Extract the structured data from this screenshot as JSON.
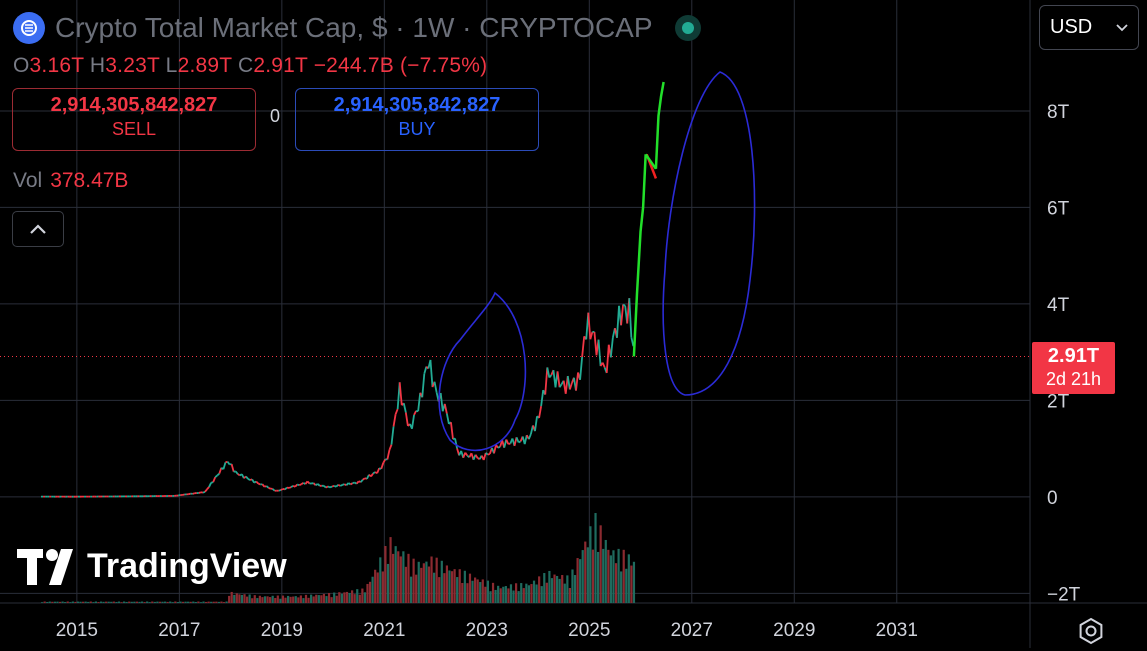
{
  "header": {
    "title": "Crypto Total Market Cap, $ · 1W · CRYPTOCAP",
    "symbol_icon": "crypto-cap-icon"
  },
  "ohlc": {
    "o_label": "O",
    "o_value": "3.16T",
    "h_label": "H",
    "h_value": "3.23T",
    "l_label": "L",
    "l_value": "2.89T",
    "c_label": "C",
    "c_value": "2.91T",
    "change": "−244.7B (−7.75%)"
  },
  "trade": {
    "sell_price": "2,914,305,842,827",
    "sell_label": "SELL",
    "buy_price": "2,914,305,842,827",
    "buy_label": "BUY",
    "spread": "0"
  },
  "volume": {
    "label": "Vol",
    "value": "378.47B"
  },
  "currency": {
    "selected": "USD"
  },
  "price_tag": {
    "price": "2.91T",
    "countdown": "2d 21h"
  },
  "watermark": "TradingView",
  "colors": {
    "up": "#22ab94",
    "down": "#f23645",
    "annotation_circle": "#2b2bd6",
    "annotation_up": "#22e02a",
    "annotation_down": "#f22020"
  },
  "chart_data": {
    "type": "line",
    "series": [
      {
        "x": [
          2014.3,
          2015.0,
          2016.0,
          2016.9,
          2017.5,
          2017.95,
          2018.1,
          2018.5,
          2018.9,
          2019.5,
          2019.9,
          2020.5,
          2020.9,
          2021.1,
          2021.3,
          2021.5,
          2021.7,
          2021.85,
          2022.0,
          2022.2,
          2022.45,
          2022.9,
          2023.3,
          2023.8,
          2024.0,
          2024.2,
          2024.5,
          2024.8,
          2024.95,
          2025.1,
          2025.3,
          2025.5,
          2025.65,
          2025.8,
          2025.87
        ],
        "y": [
          0.005,
          0.004,
          0.01,
          0.02,
          0.1,
          0.75,
          0.5,
          0.3,
          0.12,
          0.3,
          0.2,
          0.3,
          0.55,
          0.9,
          2.2,
          1.4,
          2.0,
          2.85,
          2.2,
          1.8,
          0.9,
          0.8,
          1.1,
          1.2,
          1.6,
          2.6,
          2.3,
          2.4,
          3.6,
          3.3,
          2.6,
          3.4,
          3.9,
          3.8,
          2.91
        ]
      }
    ],
    "volume": {
      "x": [
        2017.9,
        2018.5,
        2019.3,
        2020.0,
        2020.6,
        2021.1,
        2021.3,
        2021.6,
        2021.9,
        2022.3,
        2022.8,
        2023.2,
        2023.8,
        2024.2,
        2024.6,
        2024.9,
        2025.1,
        2025.4,
        2025.7,
        2025.87
      ],
      "y": [
        0.08,
        0.05,
        0.05,
        0.07,
        0.1,
        0.45,
        0.38,
        0.28,
        0.32,
        0.25,
        0.18,
        0.12,
        0.14,
        0.22,
        0.18,
        0.45,
        0.6,
        0.38,
        0.35,
        0.3
      ]
    },
    "annotations": {
      "projection_up": {
        "x": [
          2025.87,
          2025.93,
          2026.0,
          2026.05,
          2026.1
        ],
        "y": [
          2.91,
          4.2,
          5.5,
          6.0,
          7.1
        ]
      },
      "projection_up_2": {
        "x": [
          2026.3,
          2026.35,
          2026.4,
          2026.45
        ],
        "y": [
          6.8,
          7.9,
          8.3,
          8.6
        ]
      },
      "projection_down": {
        "x": [
          2026.12,
          2026.3
        ],
        "y": [
          7.1,
          6.6
        ]
      }
    },
    "x_ticks": [
      "2015",
      "2017",
      "2019",
      "2021",
      "2023",
      "2025",
      "2027",
      "2029",
      "2031"
    ],
    "y_ticks": [
      "8T",
      "6T",
      "4T",
      "2T",
      "0",
      "−2T"
    ],
    "xlim": [
      2013.5,
      2033.6
    ],
    "ylim": [
      -2.2,
      10.3
    ],
    "grid": true,
    "last_price": 2.91
  }
}
